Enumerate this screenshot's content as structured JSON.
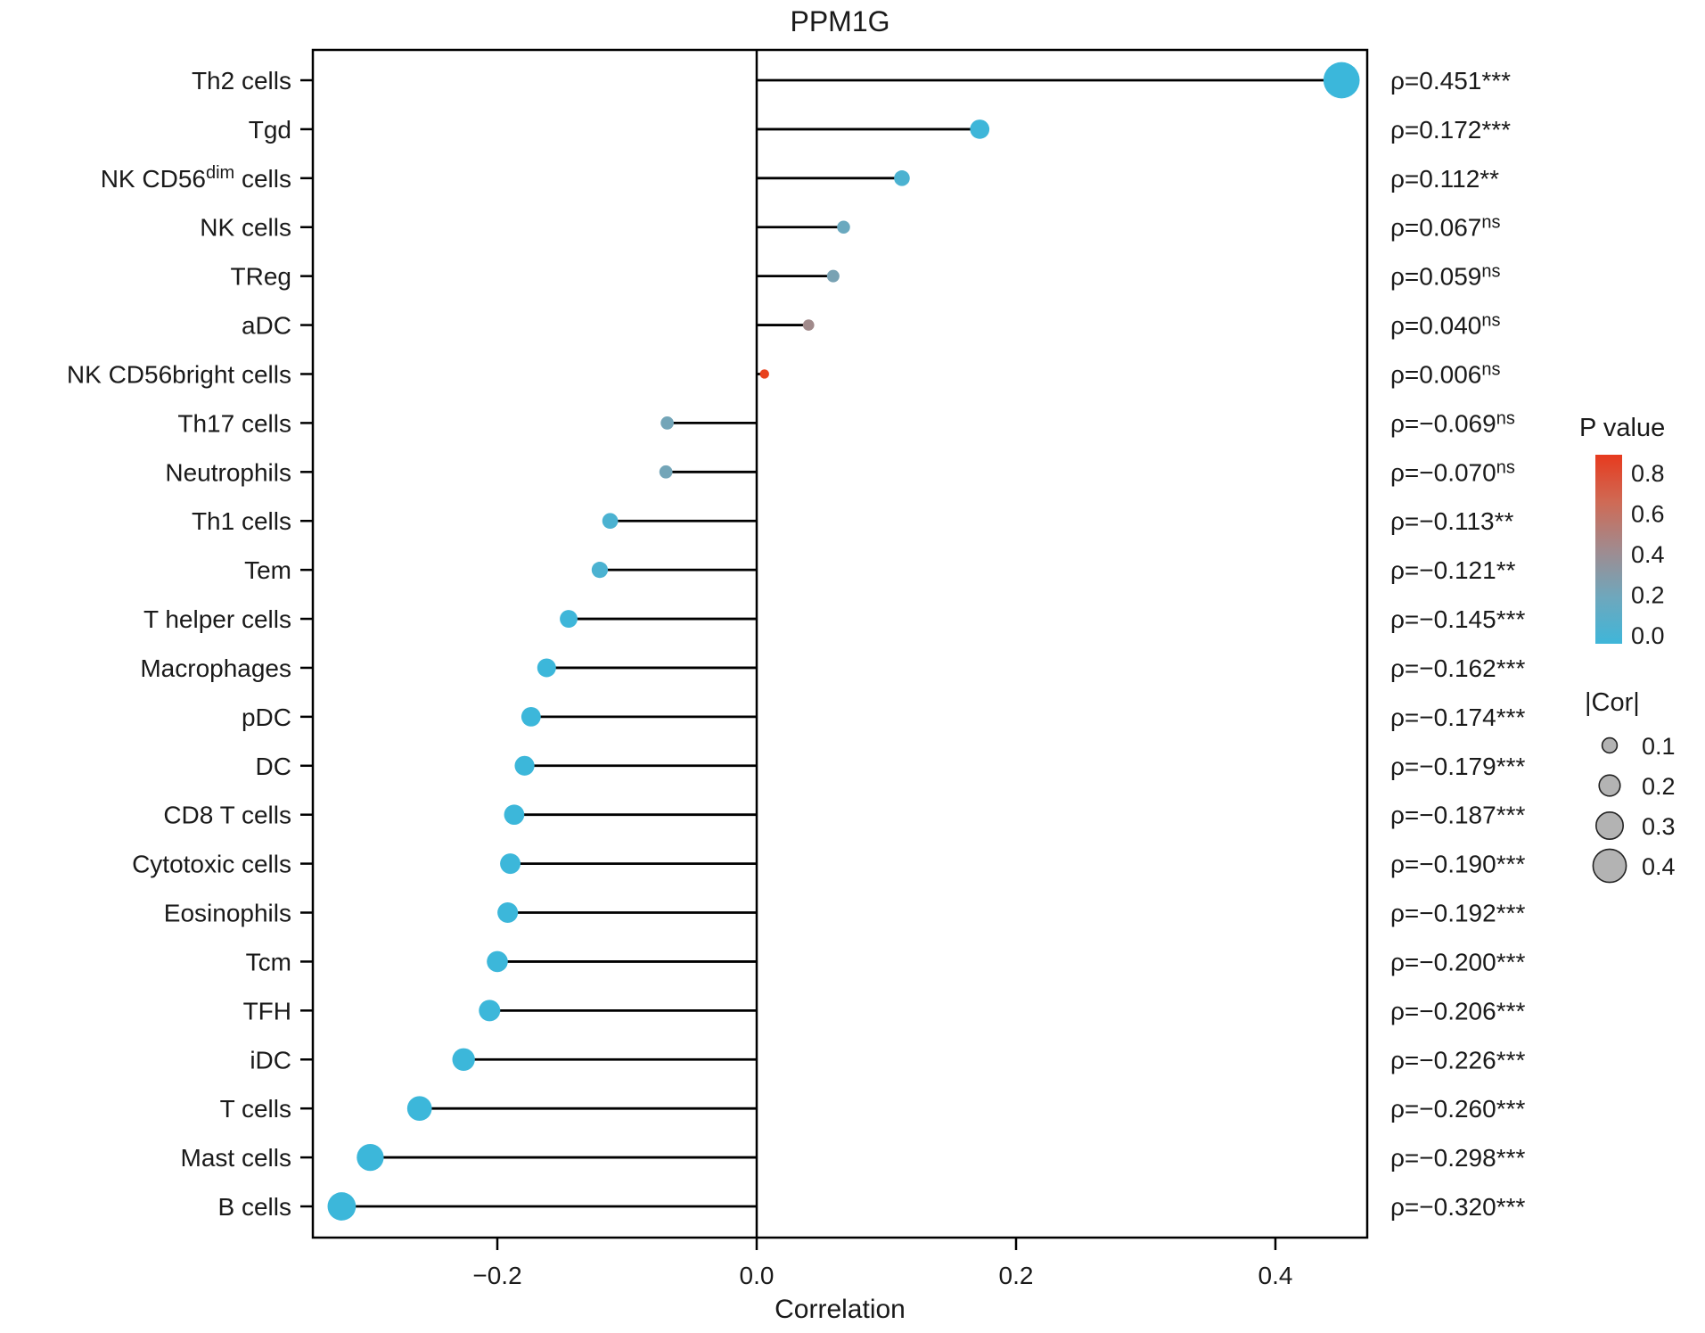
{
  "chart_data": {
    "type": "lollipop",
    "title": "PPM1G",
    "xlabel": "Correlation",
    "xlim": [
      -0.345,
      0.47
    ],
    "grid": false,
    "zero_line": 0.0,
    "x_ticks": [
      {
        "value": -0.2,
        "label": "−0.2"
      },
      {
        "value": 0.0,
        "label": "0.0"
      },
      {
        "value": 0.2,
        "label": "0.2"
      },
      {
        "value": 0.4,
        "label": "0.4"
      }
    ],
    "rows": [
      {
        "label": "Th2 cells",
        "cor": 0.451,
        "p_color": "#3bb7db",
        "annotation": {
          "prefix": "ρ=",
          "value": "0.451",
          "sig": "***",
          "sig_superscript": false
        }
      },
      {
        "label": "Tgd",
        "cor": 0.172,
        "p_color": "#3eb6d9",
        "annotation": {
          "prefix": "ρ=",
          "value": "0.172",
          "sig": "***",
          "sig_superscript": false
        }
      },
      {
        "label": "NK CD56^dim^ cells",
        "cor": 0.112,
        "p_color": "#4bb2d1",
        "annotation": {
          "prefix": "ρ=",
          "value": "0.112",
          "sig": "**",
          "sig_superscript": false
        }
      },
      {
        "label": "NK cells",
        "cor": 0.067,
        "p_color": "#6aa9bf",
        "annotation": {
          "prefix": "ρ=",
          "value": "0.067",
          "sig": "ns",
          "sig_superscript": true
        }
      },
      {
        "label": "TReg",
        "cor": 0.059,
        "p_color": "#78a2b3",
        "annotation": {
          "prefix": "ρ=",
          "value": "0.059",
          "sig": "ns",
          "sig_superscript": true
        }
      },
      {
        "label": "aDC",
        "cor": 0.04,
        "p_color": "#a18a8b",
        "annotation": {
          "prefix": "ρ=",
          "value": "0.040",
          "sig": "ns",
          "sig_superscript": true
        }
      },
      {
        "label": "NK CD56bright cells",
        "cor": 0.006,
        "p_color": "#e8421d",
        "annotation": {
          "prefix": "ρ=",
          "value": "0.006",
          "sig": "ns",
          "sig_superscript": true
        }
      },
      {
        "label": "Th17 cells",
        "cor": -0.069,
        "p_color": "#73a5b8",
        "annotation": {
          "prefix": "ρ=",
          "value": "−0.069",
          "sig": "ns",
          "sig_superscript": true
        }
      },
      {
        "label": "Neutrophils",
        "cor": -0.07,
        "p_color": "#73a5b8",
        "annotation": {
          "prefix": "ρ=",
          "value": "−0.070",
          "sig": "ns",
          "sig_superscript": true
        }
      },
      {
        "label": "Th1 cells",
        "cor": -0.113,
        "p_color": "#4bb2d1",
        "annotation": {
          "prefix": "ρ=",
          "value": "−0.113",
          "sig": "**",
          "sig_superscript": false
        }
      },
      {
        "label": "Tem",
        "cor": -0.121,
        "p_color": "#4bb2d1",
        "annotation": {
          "prefix": "ρ=",
          "value": "−0.121",
          "sig": "**",
          "sig_superscript": false
        }
      },
      {
        "label": "T helper cells",
        "cor": -0.145,
        "p_color": "#3eb6d9",
        "annotation": {
          "prefix": "ρ=",
          "value": "−0.145",
          "sig": "***",
          "sig_superscript": false
        }
      },
      {
        "label": "Macrophages",
        "cor": -0.162,
        "p_color": "#3cb7da",
        "annotation": {
          "prefix": "ρ=",
          "value": "−0.162",
          "sig": "***",
          "sig_superscript": false
        }
      },
      {
        "label": "pDC",
        "cor": -0.174,
        "p_color": "#3cb7da",
        "annotation": {
          "prefix": "ρ=",
          "value": "−0.174",
          "sig": "***",
          "sig_superscript": false
        }
      },
      {
        "label": "DC",
        "cor": -0.179,
        "p_color": "#3cb7da",
        "annotation": {
          "prefix": "ρ=",
          "value": "−0.179",
          "sig": "***",
          "sig_superscript": false
        }
      },
      {
        "label": "CD8 T cells",
        "cor": -0.187,
        "p_color": "#3cb7da",
        "annotation": {
          "prefix": "ρ=",
          "value": "−0.187",
          "sig": "***",
          "sig_superscript": false
        }
      },
      {
        "label": "Cytotoxic cells",
        "cor": -0.19,
        "p_color": "#3cb7da",
        "annotation": {
          "prefix": "ρ=",
          "value": "−0.190",
          "sig": "***",
          "sig_superscript": false
        }
      },
      {
        "label": "Eosinophils",
        "cor": -0.192,
        "p_color": "#3cb7da",
        "annotation": {
          "prefix": "ρ=",
          "value": "−0.192",
          "sig": "***",
          "sig_superscript": false
        }
      },
      {
        "label": "Tcm",
        "cor": -0.2,
        "p_color": "#3cb7da",
        "annotation": {
          "prefix": "ρ=",
          "value": "−0.200",
          "sig": "***",
          "sig_superscript": false
        }
      },
      {
        "label": "TFH",
        "cor": -0.206,
        "p_color": "#3cb7da",
        "annotation": {
          "prefix": "ρ=",
          "value": "−0.206",
          "sig": "***",
          "sig_superscript": false
        }
      },
      {
        "label": "iDC",
        "cor": -0.226,
        "p_color": "#3cb7da",
        "annotation": {
          "prefix": "ρ=",
          "value": "−0.226",
          "sig": "***",
          "sig_superscript": false
        }
      },
      {
        "label": "T cells",
        "cor": -0.26,
        "p_color": "#3cb7da",
        "annotation": {
          "prefix": "ρ=",
          "value": "−0.260",
          "sig": "***",
          "sig_superscript": false
        }
      },
      {
        "label": "Mast cells",
        "cor": -0.298,
        "p_color": "#3cb7da",
        "annotation": {
          "prefix": "ρ=",
          "value": "−0.298",
          "sig": "***",
          "sig_superscript": false
        }
      },
      {
        "label": "B cells",
        "cor": -0.32,
        "p_color": "#3cb7da",
        "annotation": {
          "prefix": "ρ=",
          "value": "−0.320",
          "sig": "***",
          "sig_superscript": false
        }
      }
    ],
    "legends": {
      "p_value": {
        "title": "P value",
        "tick_labels": [
          "0.8",
          "0.6",
          "0.4",
          "0.2",
          "0.0"
        ],
        "gradient": [
          "#e73a1e",
          "#cf6a55",
          "#a18a8e",
          "#6fa7bc",
          "#3fb6d9"
        ]
      },
      "cor": {
        "title": "|Cor|",
        "circle_fill": "#b3b3b3",
        "circle_stroke": "#222222",
        "items": [
          {
            "size": 0.1,
            "label": "0.1"
          },
          {
            "size": 0.2,
            "label": "0.2"
          },
          {
            "size": 0.3,
            "label": "0.3"
          },
          {
            "size": 0.4,
            "label": "0.4"
          }
        ]
      }
    }
  }
}
